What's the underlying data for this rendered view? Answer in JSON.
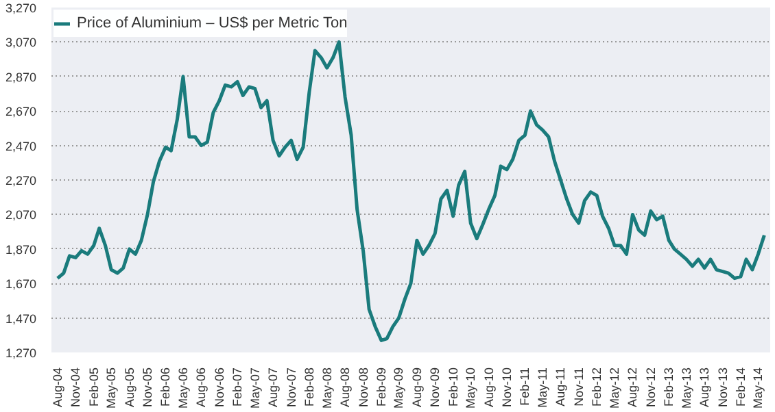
{
  "chart_data": {
    "type": "line",
    "x": [
      "2004-08",
      "2004-09",
      "2004-10",
      "2004-11",
      "2004-12",
      "2005-01",
      "2005-02",
      "2005-03",
      "2005-04",
      "2005-05",
      "2005-06",
      "2005-07",
      "2005-08",
      "2005-09",
      "2005-10",
      "2005-11",
      "2005-12",
      "2006-01",
      "2006-02",
      "2006-03",
      "2006-04",
      "2006-05",
      "2006-06",
      "2006-07",
      "2006-08",
      "2006-09",
      "2006-10",
      "2006-11",
      "2006-12",
      "2007-01",
      "2007-02",
      "2007-03",
      "2007-04",
      "2007-05",
      "2007-06",
      "2007-07",
      "2007-08",
      "2007-09",
      "2007-10",
      "2007-11",
      "2007-12",
      "2008-01",
      "2008-02",
      "2008-03",
      "2008-04",
      "2008-05",
      "2008-06",
      "2008-07",
      "2008-08",
      "2008-09",
      "2008-10",
      "2008-11",
      "2008-12",
      "2009-01",
      "2009-02",
      "2009-03",
      "2009-04",
      "2009-05",
      "2009-06",
      "2009-07",
      "2009-08",
      "2009-09",
      "2009-10",
      "2009-11",
      "2009-12",
      "2010-01",
      "2010-02",
      "2010-03",
      "2010-04",
      "2010-05",
      "2010-06",
      "2010-07",
      "2010-08",
      "2010-09",
      "2010-10",
      "2010-11",
      "2010-12",
      "2011-01",
      "2011-02",
      "2011-03",
      "2011-04",
      "2011-05",
      "2011-06",
      "2011-07",
      "2011-08",
      "2011-09",
      "2011-10",
      "2011-11",
      "2011-12",
      "2012-01",
      "2012-02",
      "2012-03",
      "2012-04",
      "2012-05",
      "2012-06",
      "2012-07",
      "2012-08",
      "2012-09",
      "2012-10",
      "2012-11",
      "2012-12",
      "2013-01",
      "2013-02",
      "2013-03",
      "2013-04",
      "2013-05",
      "2013-06",
      "2013-07",
      "2013-08",
      "2013-09",
      "2013-10",
      "2013-11",
      "2013-12",
      "2014-01",
      "2014-02",
      "2014-03",
      "2014-04",
      "2014-05",
      "2014-06"
    ],
    "series": [
      {
        "name": "Price of Aluminium – US$ per Metric Ton",
        "color": "#1a7b7c",
        "values": [
          1700,
          1730,
          1830,
          1820,
          1860,
          1840,
          1890,
          1990,
          1890,
          1750,
          1730,
          1760,
          1870,
          1840,
          1920,
          2070,
          2260,
          2380,
          2460,
          2440,
          2620,
          2870,
          2520,
          2520,
          2470,
          2490,
          2660,
          2730,
          2820,
          2810,
          2840,
          2760,
          2810,
          2800,
          2690,
          2730,
          2500,
          2410,
          2460,
          2500,
          2390,
          2460,
          2780,
          3020,
          2980,
          2920,
          2980,
          3070,
          2750,
          2530,
          2100,
          1860,
          1520,
          1420,
          1340,
          1350,
          1420,
          1470,
          1580,
          1670,
          1920,
          1840,
          1890,
          1960,
          2160,
          2210,
          2060,
          2240,
          2320,
          2020,
          1930,
          2010,
          2100,
          2180,
          2350,
          2330,
          2390,
          2500,
          2530,
          2670,
          2590,
          2560,
          2520,
          2380,
          2270,
          2160,
          2070,
          2020,
          2150,
          2200,
          2180,
          2060,
          1990,
          1890,
          1890,
          1840,
          2070,
          1980,
          1950,
          2090,
          2040,
          2060,
          1920,
          1870,
          1840,
          1810,
          1770,
          1810,
          1760,
          1810,
          1750,
          1740,
          1730,
          1700,
          1710,
          1810,
          1750,
          1840,
          1950
        ]
      }
    ],
    "xlim": [
      "2004-07",
      "2014-07"
    ],
    "xticks": [
      {
        "value": "2004-08",
        "label": "Aug-04"
      },
      {
        "value": "2004-11",
        "label": "Nov-04"
      },
      {
        "value": "2005-02",
        "label": "Feb-05"
      },
      {
        "value": "2005-05",
        "label": "May-05"
      },
      {
        "value": "2005-08",
        "label": "Aug-05"
      },
      {
        "value": "2005-11",
        "label": "Nov-05"
      },
      {
        "value": "2006-02",
        "label": "Feb-06"
      },
      {
        "value": "2006-05",
        "label": "May-06"
      },
      {
        "value": "2006-08",
        "label": "Aug-06"
      },
      {
        "value": "2006-11",
        "label": "Nov-06"
      },
      {
        "value": "2007-02",
        "label": "Feb-07"
      },
      {
        "value": "2007-05",
        "label": "May-07"
      },
      {
        "value": "2007-08",
        "label": "Aug-07"
      },
      {
        "value": "2007-11",
        "label": "Nov-07"
      },
      {
        "value": "2008-02",
        "label": "Feb-08"
      },
      {
        "value": "2008-05",
        "label": "May-08"
      },
      {
        "value": "2008-08",
        "label": "Aug-08"
      },
      {
        "value": "2008-11",
        "label": "Nov-08"
      },
      {
        "value": "2009-02",
        "label": "Feb-09"
      },
      {
        "value": "2009-05",
        "label": "May-09"
      },
      {
        "value": "2009-08",
        "label": "Aug-09"
      },
      {
        "value": "2009-11",
        "label": "Nov-09"
      },
      {
        "value": "2010-02",
        "label": "Feb-10"
      },
      {
        "value": "2010-05",
        "label": "May-10"
      },
      {
        "value": "2010-08",
        "label": "Aug-10"
      },
      {
        "value": "2010-11",
        "label": "Nov-10"
      },
      {
        "value": "2011-02",
        "label": "Feb-11"
      },
      {
        "value": "2011-05",
        "label": "May-11"
      },
      {
        "value": "2011-08",
        "label": "Aug-11"
      },
      {
        "value": "2011-11",
        "label": "Nov-11"
      },
      {
        "value": "2012-02",
        "label": "Feb-12"
      },
      {
        "value": "2012-05",
        "label": "May-12"
      },
      {
        "value": "2012-08",
        "label": "Aug-12"
      },
      {
        "value": "2012-11",
        "label": "Nov-12"
      },
      {
        "value": "2013-02",
        "label": "Feb-13"
      },
      {
        "value": "2013-05",
        "label": "May-13"
      },
      {
        "value": "2013-08",
        "label": "Aug-13"
      },
      {
        "value": "2013-11",
        "label": "Nov-13"
      },
      {
        "value": "2014-02",
        "label": "Feb-14"
      },
      {
        "value": "2014-05",
        "label": "May-14"
      }
    ],
    "ylim": [
      1270,
      3270
    ],
    "yticks": [
      {
        "value": 1270,
        "label": "1,270"
      },
      {
        "value": 1470,
        "label": "1,470"
      },
      {
        "value": 1670,
        "label": "1,670"
      },
      {
        "value": 1870,
        "label": "1,870"
      },
      {
        "value": 2070,
        "label": "2,070"
      },
      {
        "value": 2270,
        "label": "2,270"
      },
      {
        "value": 2470,
        "label": "2,470"
      },
      {
        "value": 2670,
        "label": "2,670"
      },
      {
        "value": 2870,
        "label": "2,870"
      },
      {
        "value": 3070,
        "label": "3,070"
      },
      {
        "value": 3270,
        "label": "3,270"
      }
    ],
    "grid": "y",
    "legend": "top left",
    "line_style": "solid"
  }
}
